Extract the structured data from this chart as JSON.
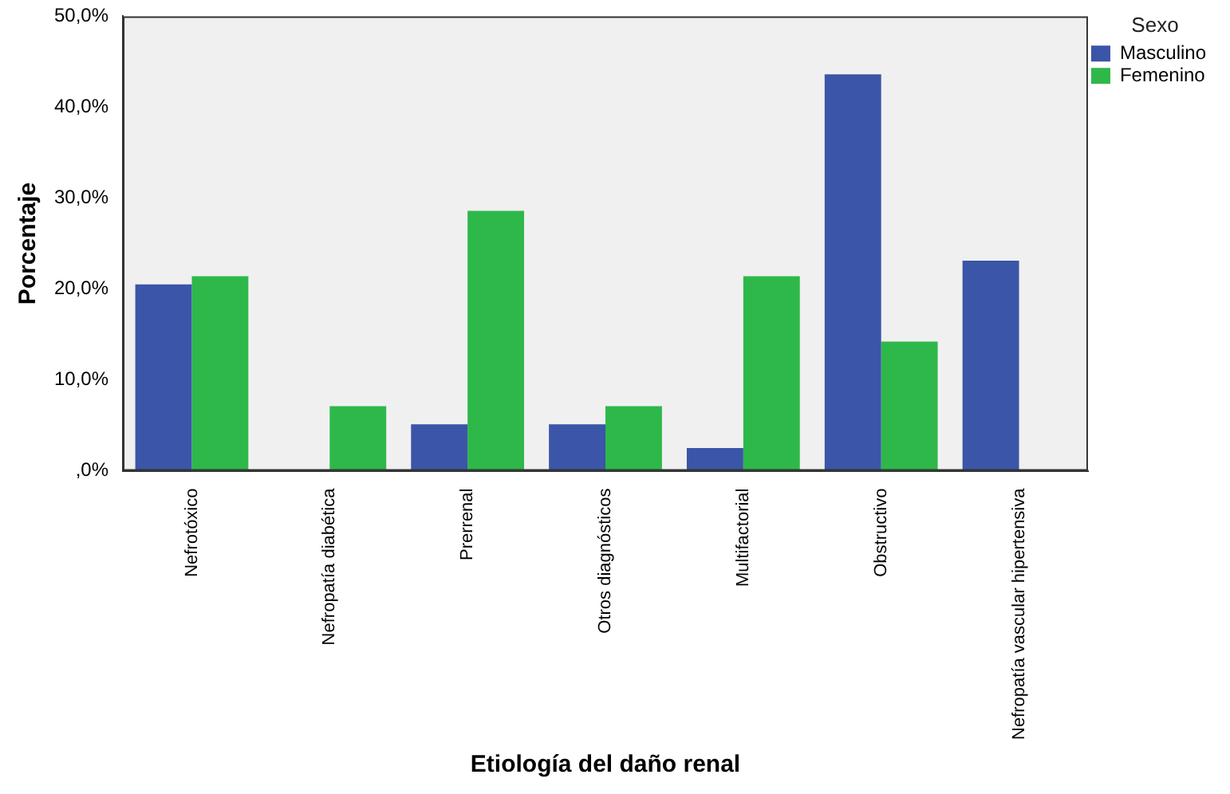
{
  "chart_data": {
    "type": "bar",
    "xlabel": "Etiología del daño renal",
    "ylabel": "Porcentaje",
    "legend_title": "Sexo",
    "legend": "top right",
    "grid": false,
    "categories": [
      "Nefrotóxico",
      "Nefropatía diabética",
      "Prerrenal",
      "Otros diagnósticos",
      "Multifactorial",
      "Obstructivo",
      "Nefropatía vascular hipertensiva"
    ],
    "series": [
      {
        "name": "Masculino",
        "color": "#3b55a8",
        "values": [
          20.5,
          0,
          5.1,
          5.1,
          2.5,
          43.6,
          23.1
        ]
      },
      {
        "name": "Femenino",
        "color": "#2eb84a",
        "values": [
          21.4,
          7.1,
          28.6,
          7.1,
          21.4,
          14.2,
          0
        ]
      }
    ],
    "ylim": [
      0,
      50
    ],
    "yticks": [
      {
        "value": 0,
        "label": ",0%"
      },
      {
        "value": 10,
        "label": "10,0%"
      },
      {
        "value": 20,
        "label": "20,0%"
      },
      {
        "value": 30,
        "label": "30,0%"
      },
      {
        "value": 40,
        "label": "40,0%"
      },
      {
        "value": 50,
        "label": "50,0%"
      }
    ]
  }
}
